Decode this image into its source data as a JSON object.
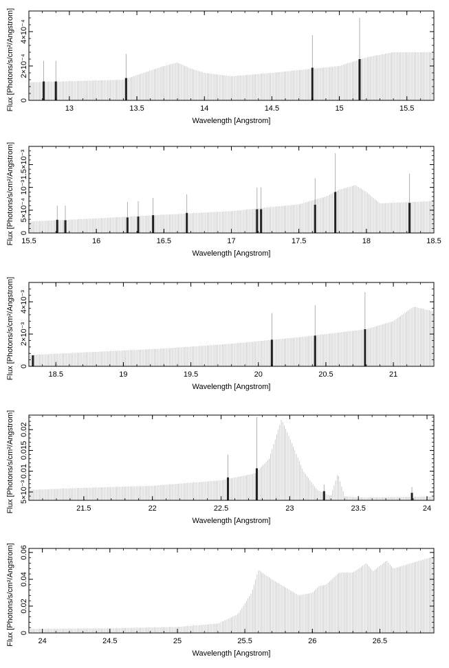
{
  "chart_data": [
    {
      "type": "bar",
      "xlabel": "Wavelength [Angstrom]",
      "ylabel": "Flux [Photons/s/cm²/Angstrom]",
      "xlim": [
        12.7,
        15.7
      ],
      "ylim": [
        0,
        0.00052
      ],
      "xticks": [
        13,
        13.5,
        14,
        14.5,
        15,
        15.5
      ],
      "xtick_labels": [
        "13",
        "13.5",
        "14",
        "14.5",
        "15",
        "15.5"
      ],
      "yticks": [
        0,
        0.0002,
        0.0004
      ],
      "ytick_labels": [
        "0",
        "2×10⁻⁴",
        "4×10⁻⁴"
      ],
      "continuum": [
        [
          12.7,
          0.000105
        ],
        [
          13.4,
          0.00012
        ],
        [
          13.7,
          0.0002
        ],
        [
          13.8,
          0.00022
        ],
        [
          13.9,
          0.000185
        ],
        [
          14.0,
          0.00016
        ],
        [
          14.2,
          0.00014
        ],
        [
          14.5,
          0.00016
        ],
        [
          15.0,
          0.0002
        ],
        [
          15.2,
          0.00025
        ],
        [
          15.4,
          0.00028
        ],
        [
          15.7,
          0.00028
        ]
      ],
      "lines": [
        {
          "x": 12.81,
          "y": 0.00011,
          "err": 0.00023
        },
        {
          "x": 12.9,
          "y": 0.00011,
          "err": 0.00023
        },
        {
          "x": 13.42,
          "y": 0.00013,
          "err": 0.00027
        },
        {
          "x": 14.8,
          "y": 0.00019,
          "err": 0.00038
        },
        {
          "x": 15.15,
          "y": 0.00024,
          "err": 0.00048
        }
      ]
    },
    {
      "type": "bar",
      "xlabel": "Wavelength [Angstrom]",
      "ylabel": "Flux [Photons/s/cm²/Angstrom]",
      "xlim": [
        15.5,
        18.5
      ],
      "ylim": [
        0,
        0.0019
      ],
      "xticks": [
        15.5,
        16,
        16.5,
        17,
        17.5,
        18,
        18.5
      ],
      "xtick_labels": [
        "15.5",
        "16",
        "16.5",
        "17",
        "17.5",
        "18",
        "18.5"
      ],
      "yticks": [
        0,
        0.0005,
        0.001,
        0.0015
      ],
      "ytick_labels": [
        "0",
        "5×10⁻⁴",
        "10⁻³",
        "1.5×10⁻³"
      ],
      "continuum": [
        [
          15.5,
          0.00025
        ],
        [
          16.0,
          0.00032
        ],
        [
          16.5,
          0.0004
        ],
        [
          17.0,
          0.00048
        ],
        [
          17.5,
          0.00063
        ],
        [
          17.7,
          0.0008
        ],
        [
          17.8,
          0.00095
        ],
        [
          17.92,
          0.00105
        ],
        [
          18.0,
          0.0009
        ],
        [
          18.1,
          0.00065
        ],
        [
          18.5,
          0.0007
        ]
      ],
      "lines": [
        {
          "x": 15.71,
          "y": 0.00029,
          "err": 0.0006
        },
        {
          "x": 15.77,
          "y": 0.00028,
          "err": 0.0006
        },
        {
          "x": 16.23,
          "y": 0.00034,
          "err": 0.00068
        },
        {
          "x": 16.31,
          "y": 0.00036,
          "err": 0.0007
        },
        {
          "x": 16.42,
          "y": 0.00039,
          "err": 0.00077
        },
        {
          "x": 16.67,
          "y": 0.00044,
          "err": 0.00085
        },
        {
          "x": 17.19,
          "y": 0.00052,
          "err": 0.001
        },
        {
          "x": 17.22,
          "y": 0.00052,
          "err": 0.001
        },
        {
          "x": 17.62,
          "y": 0.00062,
          "err": 0.0012
        },
        {
          "x": 17.77,
          "y": 0.0009,
          "err": 0.00175
        },
        {
          "x": 18.32,
          "y": 0.00066,
          "err": 0.0013
        }
      ]
    },
    {
      "type": "bar",
      "xlabel": "Wavelength [Angstrom]",
      "ylabel": "Flux [Photons/s/cm²/Angstrom]",
      "xlim": [
        18.3,
        21.3
      ],
      "ylim": [
        0,
        0.0052
      ],
      "xticks": [
        18.5,
        19,
        19.5,
        20,
        20.5,
        21
      ],
      "xtick_labels": [
        "18.5",
        "19",
        "19.5",
        "20",
        "20.5",
        "21"
      ],
      "yticks": [
        0,
        0.002,
        0.004
      ],
      "ytick_labels": [
        "0",
        "2×10⁻³",
        "4×10⁻³"
      ],
      "continuum": [
        [
          18.3,
          0.0007
        ],
        [
          18.8,
          0.0009
        ],
        [
          19.3,
          0.0011
        ],
        [
          19.8,
          0.0014
        ],
        [
          20.3,
          0.0018
        ],
        [
          20.8,
          0.0023
        ],
        [
          21.0,
          0.0028
        ],
        [
          21.15,
          0.0037
        ],
        [
          21.3,
          0.0034
        ]
      ],
      "lines": [
        {
          "x": 18.33,
          "y": 0.00068,
          "err": 0.00068
        },
        {
          "x": 20.1,
          "y": 0.00165,
          "err": 0.0033
        },
        {
          "x": 20.42,
          "y": 0.0019,
          "err": 0.0038
        },
        {
          "x": 20.79,
          "y": 0.0023,
          "err": 0.0046
        }
      ]
    },
    {
      "type": "bar",
      "xlabel": "Wavelength [Angstrom]",
      "ylabel": "Flux [Photons/s/cm²/Angstrom]",
      "xlim": [
        21.1,
        24.05
      ],
      "ylim": [
        0.003,
        0.0235
      ],
      "xticks": [
        21.5,
        22,
        22.5,
        23,
        23.5,
        24
      ],
      "xtick_labels": [
        "21.5",
        "22",
        "22.5",
        "23",
        "23.5",
        "24"
      ],
      "yticks": [
        0.005,
        0.01,
        0.015,
        0.02
      ],
      "ytick_labels": [
        "5×10⁻³",
        "0.01",
        "0.015",
        "0.02"
      ],
      "continuum": [
        [
          21.1,
          0.0055
        ],
        [
          21.5,
          0.006
        ],
        [
          22.0,
          0.0065
        ],
        [
          22.5,
          0.0078
        ],
        [
          22.75,
          0.0095
        ],
        [
          22.85,
          0.013
        ],
        [
          22.94,
          0.0225
        ],
        [
          23.0,
          0.018
        ],
        [
          23.1,
          0.01
        ],
        [
          23.2,
          0.0055
        ],
        [
          23.3,
          0.004
        ],
        [
          23.35,
          0.0095
        ],
        [
          23.4,
          0.004
        ],
        [
          23.5,
          0.0037
        ],
        [
          24.05,
          0.0039
        ]
      ],
      "lines": [
        {
          "x": 22.55,
          "y": 0.0085,
          "err": 0.014
        },
        {
          "x": 22.76,
          "y": 0.0107,
          "err": 0.023
        },
        {
          "x": 23.25,
          "y": 0.0052,
          "err": 0.0068
        },
        {
          "x": 23.89,
          "y": 0.0048,
          "err": 0.0062
        }
      ]
    },
    {
      "type": "bar",
      "xlabel": "Wavelength [Angstrom]",
      "ylabel": "Flux [Photons/s/cm²/Angstrom]",
      "xlim": [
        23.9,
        26.9
      ],
      "ylim": [
        0,
        0.063
      ],
      "xticks": [
        24,
        24.5,
        25,
        25.5,
        26,
        26.5
      ],
      "xtick_labels": [
        "24",
        "24.5",
        "25",
        "25.5",
        "26",
        "26.5"
      ],
      "yticks": [
        0,
        0.02,
        0.04,
        0.06
      ],
      "ytick_labels": [
        "0",
        "0.02",
        "0.04",
        "0.06"
      ],
      "continuum": [
        [
          23.9,
          0.003
        ],
        [
          24.5,
          0.0035
        ],
        [
          25.0,
          0.0045
        ],
        [
          25.3,
          0.007
        ],
        [
          25.45,
          0.014
        ],
        [
          25.55,
          0.03
        ],
        [
          25.6,
          0.047
        ],
        [
          25.7,
          0.04
        ],
        [
          25.9,
          0.028
        ],
        [
          26.0,
          0.03
        ],
        [
          26.05,
          0.035
        ],
        [
          26.1,
          0.036
        ],
        [
          26.2,
          0.045
        ],
        [
          26.3,
          0.045
        ],
        [
          26.4,
          0.052
        ],
        [
          26.45,
          0.046
        ],
        [
          26.55,
          0.054
        ],
        [
          26.6,
          0.048
        ],
        [
          26.9,
          0.057
        ]
      ],
      "lines": []
    }
  ]
}
